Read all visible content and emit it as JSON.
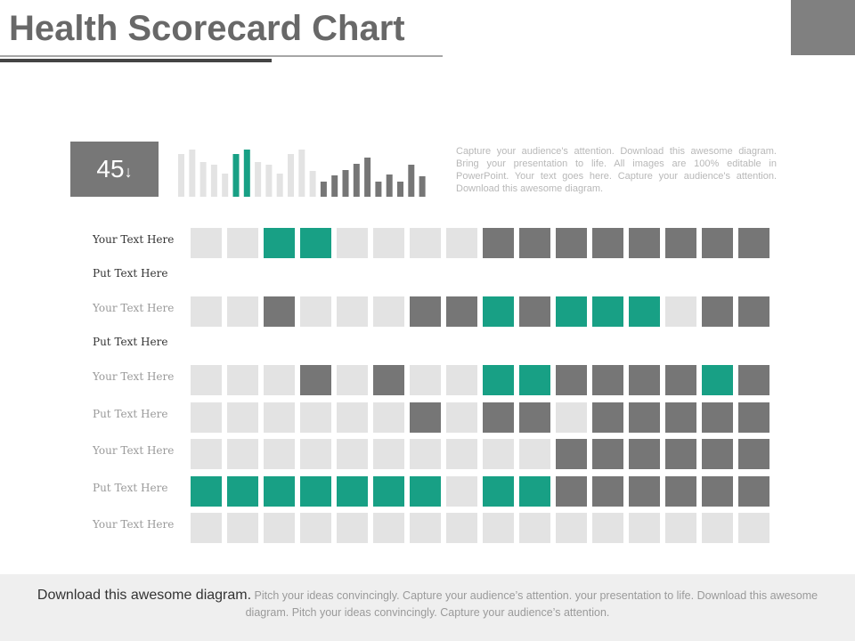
{
  "header": {
    "title": "Health Scorecard Chart"
  },
  "kpi": {
    "value": "45",
    "arrow": "↓"
  },
  "mini_chart": {
    "values": [
      48,
      53,
      39,
      36,
      26,
      48,
      53,
      39,
      36,
      26,
      48,
      53,
      29,
      17,
      24,
      30,
      37,
      44,
      17,
      25,
      17,
      36,
      23
    ],
    "colors": [
      "light",
      "light",
      "light",
      "light",
      "light",
      "teal",
      "teal",
      "light",
      "light",
      "light",
      "light",
      "light",
      "light",
      "dark",
      "dark",
      "dark",
      "dark",
      "dark",
      "dark",
      "dark",
      "dark",
      "dark",
      "dark"
    ]
  },
  "palette": {
    "light": "#e3e3e3",
    "teal": "#18a085",
    "dark": "#767676"
  },
  "description": "Capture your audience's attention. Download this awesome diagram. Bring your presentation to life. All images are 100% editable in PowerPoint. Your text goes here. Capture your audience's attention. Download this awesome diagram.",
  "rows": [
    {
      "label": "Your Text Here",
      "strong": true,
      "cells": [
        "light",
        "light",
        "teal",
        "teal",
        "light",
        "light",
        "light",
        "light",
        "dark",
        "dark",
        "dark",
        "dark",
        "dark",
        "dark",
        "dark",
        "dark"
      ]
    },
    {
      "label": "Put Text Here",
      "strong": true,
      "cells": []
    },
    {
      "label": "Your Text Here",
      "strong": false,
      "cells": [
        "light",
        "light",
        "dark",
        "light",
        "light",
        "light",
        "dark",
        "dark",
        "teal",
        "dark",
        "teal",
        "teal",
        "teal",
        "light",
        "dark",
        "dark"
      ]
    },
    {
      "label": "Put Text Here",
      "strong": true,
      "cells": []
    },
    {
      "label": "Your Text Here",
      "strong": false,
      "cells": [
        "light",
        "light",
        "light",
        "dark",
        "light",
        "dark",
        "light",
        "light",
        "teal",
        "teal",
        "dark",
        "dark",
        "dark",
        "dark",
        "teal",
        "dark"
      ]
    },
    {
      "label": "Put Text Here",
      "strong": false,
      "cells": [
        "light",
        "light",
        "light",
        "light",
        "light",
        "light",
        "dark",
        "light",
        "dark",
        "dark",
        "light",
        "dark",
        "dark",
        "dark",
        "dark",
        "dark"
      ]
    },
    {
      "label": "Your Text Here",
      "strong": false,
      "cells": [
        "light",
        "light",
        "light",
        "light",
        "light",
        "light",
        "light",
        "light",
        "light",
        "light",
        "dark",
        "dark",
        "dark",
        "dark",
        "dark",
        "dark"
      ]
    },
    {
      "label": "Put Text Here",
      "strong": false,
      "cells": [
        "teal",
        "teal",
        "teal",
        "teal",
        "teal",
        "teal",
        "teal",
        "light",
        "teal",
        "teal",
        "dark",
        "dark",
        "dark",
        "dark",
        "dark",
        "dark"
      ]
    },
    {
      "label": "Your Text Here",
      "strong": false,
      "cells": [
        "light",
        "light",
        "light",
        "light",
        "light",
        "light",
        "light",
        "light",
        "light",
        "light",
        "light",
        "light",
        "light",
        "light",
        "light",
        "light"
      ]
    }
  ],
  "footer": {
    "lead": "Download this awesome diagram.",
    "text": "Pitch your ideas convincingly. Capture your audience’s attention. your presentation to life. Download this awesome diagram. Pitch your ideas convincingly. Capture your audience’s attention."
  }
}
